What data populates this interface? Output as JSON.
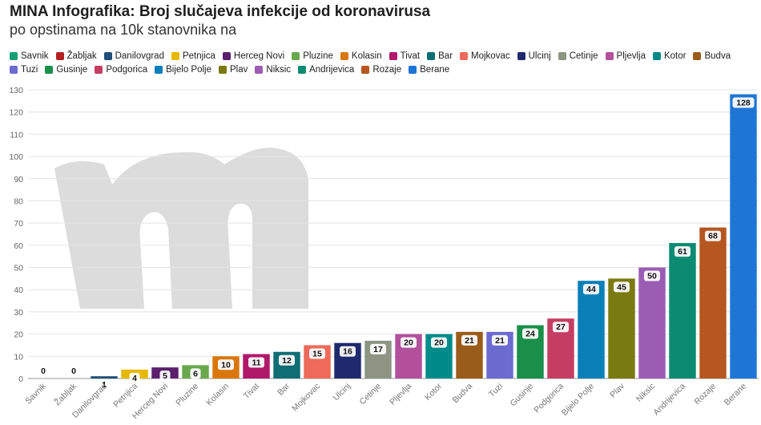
{
  "title": "MINA Infografika: Broj slučajeva infekcije od koronavirusa",
  "subtitle": "po opstinama na 10k stanovnika na",
  "chart_data": {
    "type": "bar",
    "categories": [
      "Savnik",
      "Žabljak",
      "Danilovgrad",
      "Petnjica",
      "Herceg Novi",
      "Pluzine",
      "Kolasin",
      "Tivat",
      "Bar",
      "Mojkovac",
      "Ulcinj",
      "Cetinje",
      "Pljevlja",
      "Kotor",
      "Budva",
      "Tuzi",
      "Gusinje",
      "Podgorica",
      "Bijelo Polje",
      "Plav",
      "Niksic",
      "Andrijevica",
      "Rozaje",
      "Berane"
    ],
    "values": [
      0,
      0,
      1,
      4,
      5,
      6,
      10,
      11,
      12,
      15,
      16,
      17,
      20,
      20,
      21,
      21,
      24,
      27,
      44,
      45,
      50,
      61,
      68,
      128
    ],
    "colors": [
      "#1a9e77",
      "#b22222",
      "#1f4e79",
      "#e6b800",
      "#5b1f6e",
      "#6aa84f",
      "#d9770d",
      "#b0186a",
      "#0f6d74",
      "#ee6a5a",
      "#1f2a6e",
      "#8e9483",
      "#b2509c",
      "#008b8b",
      "#9a5c1a",
      "#6b6bd0",
      "#1a8f49",
      "#c43e64",
      "#0a7fb8",
      "#7a7a12",
      "#9b5cb4",
      "#0b8c72",
      "#b5571f",
      "#1f75d6"
    ],
    "legend": [
      "Savnik",
      "Žabljak",
      "Danilovgrad",
      "Petnjica",
      "Herceg Novi",
      "Pluzine",
      "Kolasin",
      "Tivat",
      "Bar",
      "Mojkovac",
      "Ulcinj",
      "Cetinje",
      "Pljevlja",
      "Kotor",
      "Budva",
      "Tuzi",
      "Gusinje",
      "Podgorica",
      "Bijelo Polje",
      "Plav",
      "Niksic",
      "Andrijevica",
      "Rozaje",
      "Berane"
    ],
    "ylim": [
      0,
      130
    ],
    "yticks": [
      0,
      10,
      20,
      30,
      40,
      50,
      60,
      70,
      80,
      90,
      100,
      110,
      120,
      130
    ],
    "grid": true,
    "legend_position": "top",
    "data_labels": true
  }
}
